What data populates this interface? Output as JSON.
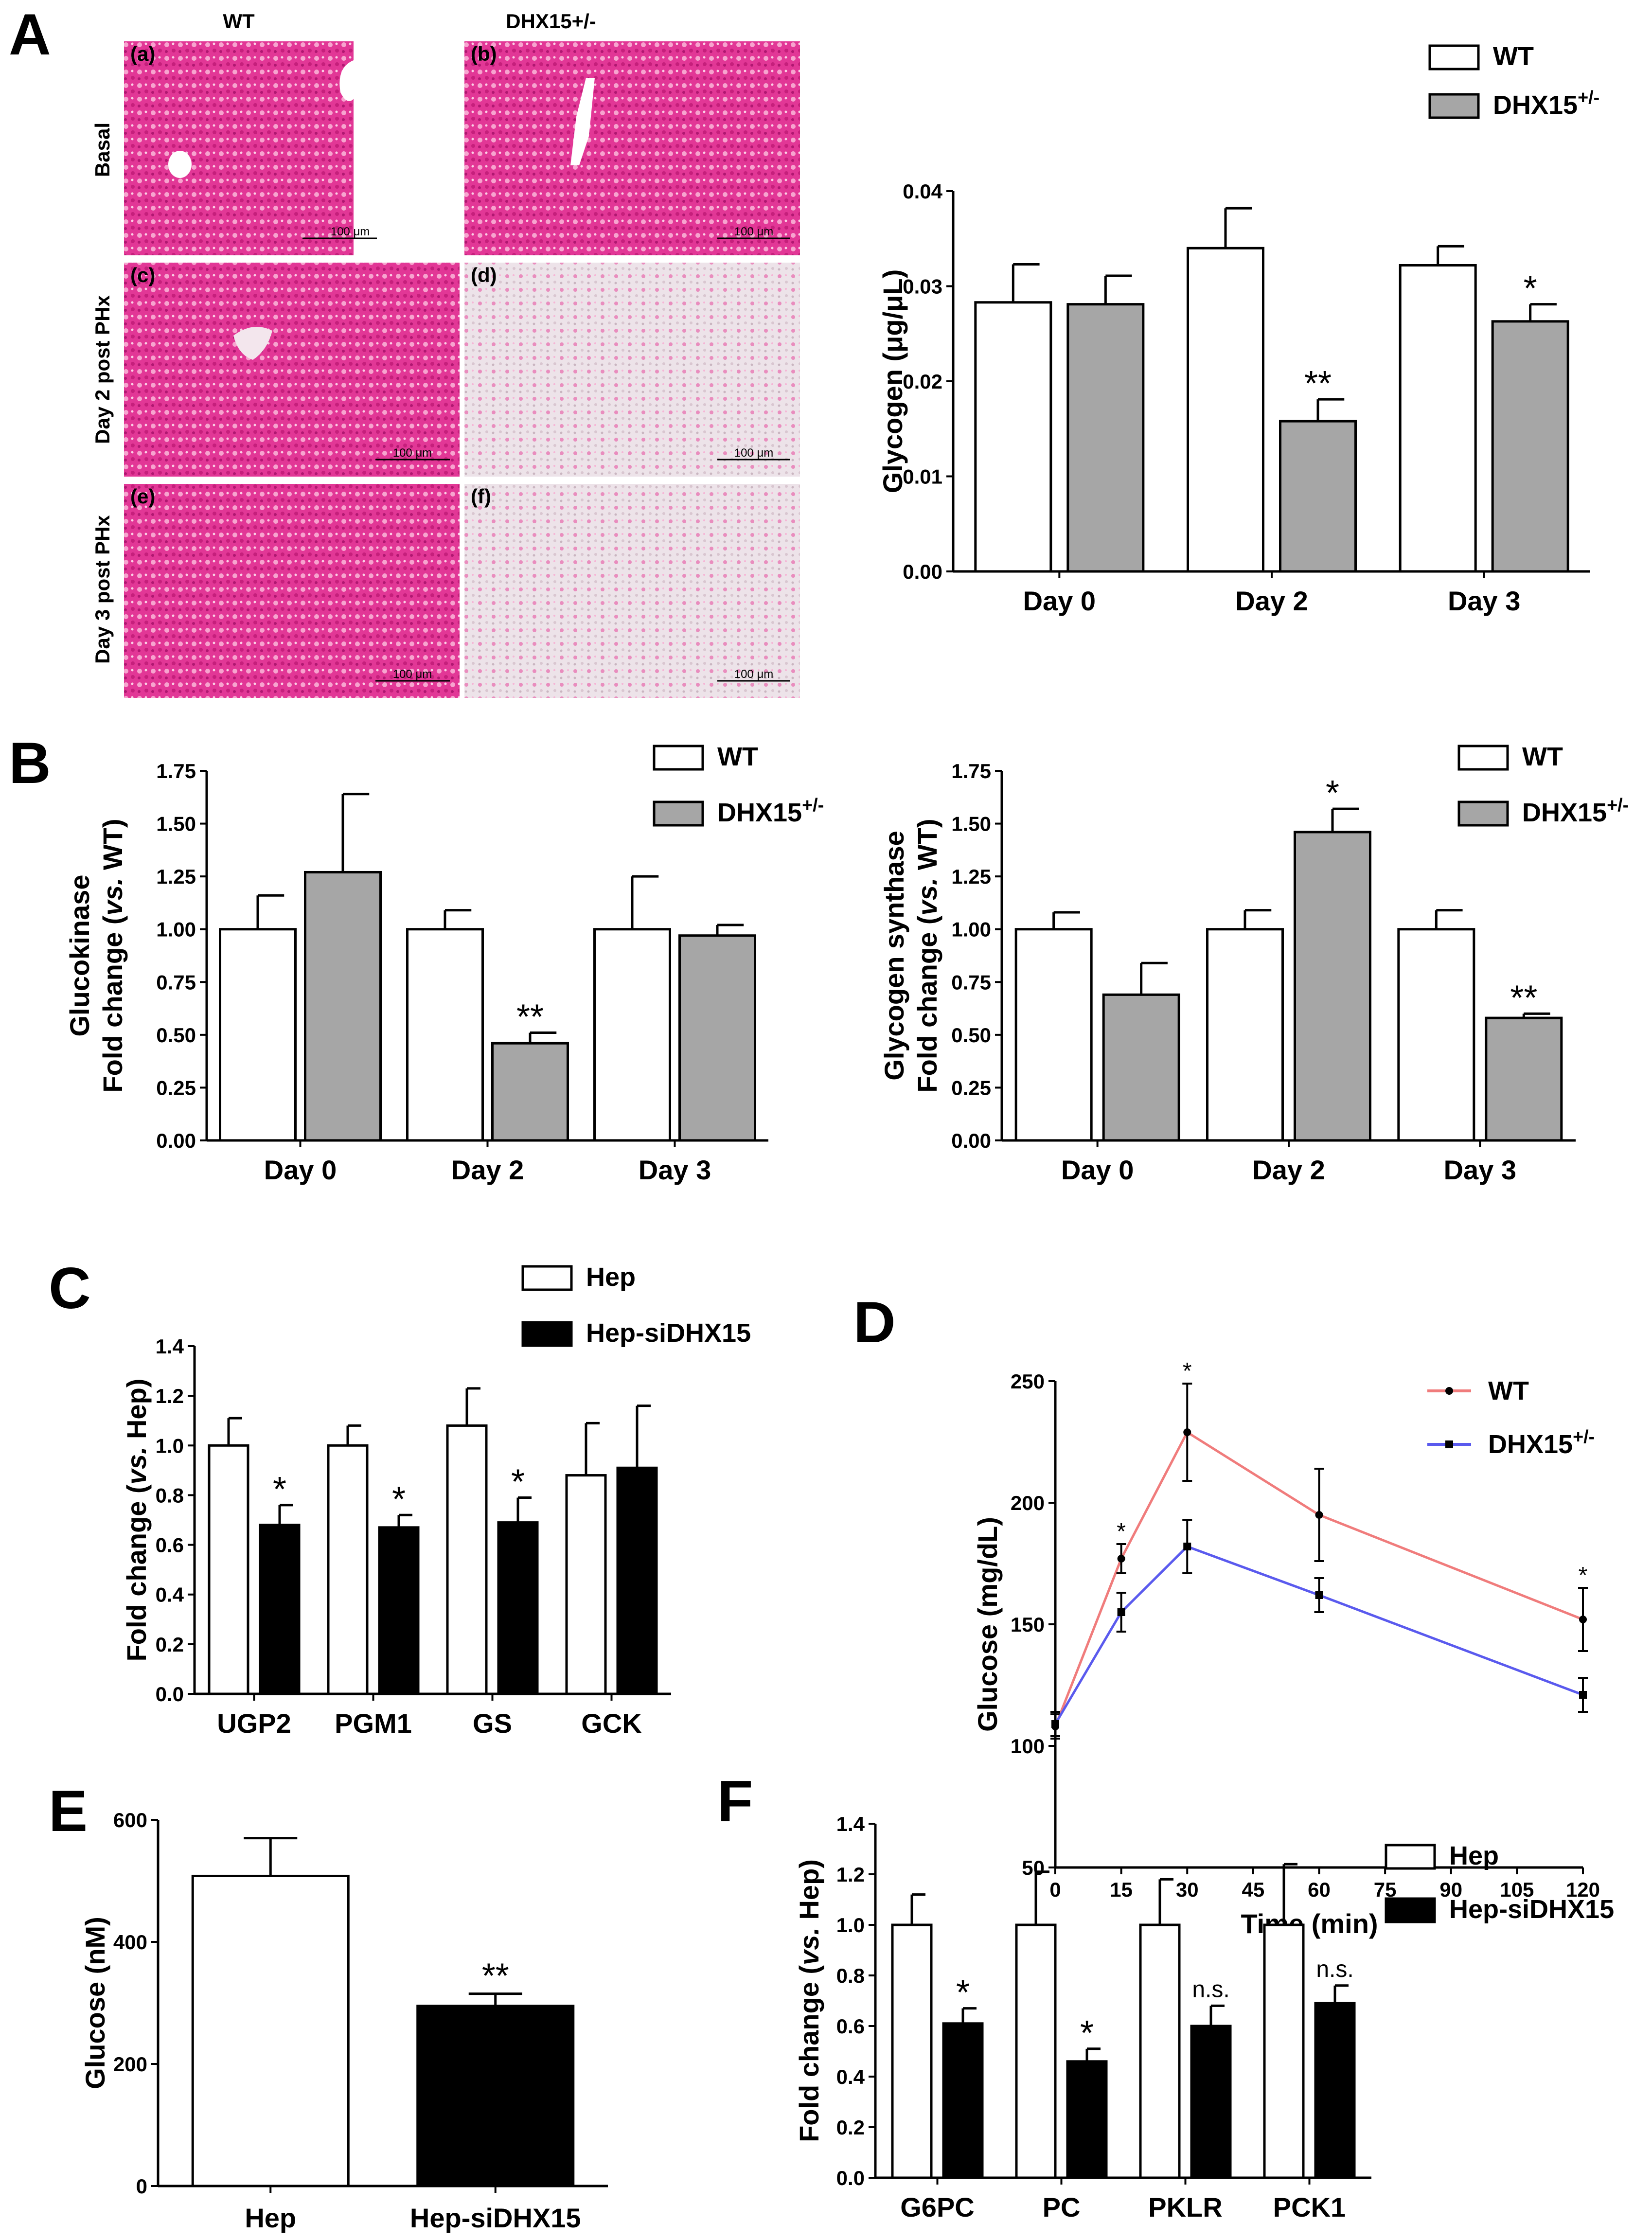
{
  "colors": {
    "wt": "#ffffff",
    "het": "#a6a6a6",
    "sirna": "#000000",
    "wt_line": "#f07c7c",
    "het_line": "#5a5aee",
    "stain": "#e8389a"
  },
  "panels": {
    "A": {
      "label": "A",
      "histology": {
        "col_headers": [
          "WT",
          "DHX15+/-"
        ],
        "row_labels": [
          "Basal",
          "Day 2 post PHx",
          "Day 3 post PHx"
        ],
        "tiles": [
          {
            "id": "(a)",
            "scale_bar": "100 μm",
            "intensity": "high"
          },
          {
            "id": "(b)",
            "scale_bar": "100 μm",
            "intensity": "high"
          },
          {
            "id": "(c)",
            "scale_bar": "100 μm",
            "intensity": "high"
          },
          {
            "id": "(d)",
            "scale_bar": "100 μm",
            "intensity": "low"
          },
          {
            "id": "(e)",
            "scale_bar": "100 μm",
            "intensity": "high"
          },
          {
            "id": "(f)",
            "scale_bar": "100 μm",
            "intensity": "low"
          }
        ]
      }
    },
    "B": {
      "label": "B"
    },
    "C": {
      "label": "C"
    },
    "D": {
      "label": "D"
    },
    "E": {
      "label": "E"
    },
    "F": {
      "label": "F"
    }
  },
  "chart_data": [
    {
      "id": "A_glycogen",
      "type": "bar",
      "panel": "A",
      "categories": [
        "Day 0",
        "Day 2",
        "Day 3"
      ],
      "ylabel": "Glycogen (μg/μL)",
      "ylim": [
        0,
        0.04
      ],
      "yticks": [
        "0.00",
        "0.01",
        "0.02",
        "0.03",
        "0.04"
      ],
      "legend": [
        "WT",
        "DHX15+/-"
      ],
      "series": [
        {
          "name": "WT",
          "color": "#ffffff",
          "values": [
            0.0283,
            0.034,
            0.0322
          ],
          "errors": [
            0.004,
            0.0042,
            0.002
          ],
          "sig": [
            "",
            "",
            ""
          ]
        },
        {
          "name": "DHX15+/-",
          "color": "#a6a6a6",
          "values": [
            0.0281,
            0.0158,
            0.0263
          ],
          "errors": [
            0.003,
            0.0023,
            0.0018
          ],
          "sig": [
            "",
            "**",
            "*"
          ]
        }
      ]
    },
    {
      "id": "B_gck",
      "type": "bar",
      "panel": "B",
      "categories": [
        "Day 0",
        "Day 2",
        "Day 3"
      ],
      "ylabel_lines": [
        "Glucokinase",
        "Fold change (vs. WT)"
      ],
      "ylim": [
        0,
        1.75
      ],
      "yticks": [
        "0.00",
        "0.25",
        "0.50",
        "0.75",
        "1.00",
        "1.25",
        "1.50",
        "1.75"
      ],
      "legend": [
        "WT",
        "DHX15+/-"
      ],
      "series": [
        {
          "name": "WT",
          "color": "#ffffff",
          "values": [
            1.0,
            1.0,
            1.0
          ],
          "errors": [
            0.16,
            0.09,
            0.25
          ],
          "sig": [
            "",
            "",
            ""
          ]
        },
        {
          "name": "DHX15+/-",
          "color": "#a6a6a6",
          "values": [
            1.27,
            0.46,
            0.97
          ],
          "errors": [
            0.37,
            0.05,
            0.05
          ],
          "sig": [
            "",
            "**",
            ""
          ]
        }
      ]
    },
    {
      "id": "B_gs",
      "type": "bar",
      "panel": "B",
      "categories": [
        "Day 0",
        "Day 2",
        "Day 3"
      ],
      "ylabel_lines": [
        "Glycogen synthase",
        "Fold change (vs. WT)"
      ],
      "ylim": [
        0,
        1.75
      ],
      "yticks": [
        "0.00",
        "0.25",
        "0.50",
        "0.75",
        "1.00",
        "1.25",
        "1.50",
        "1.75"
      ],
      "legend": [
        "WT",
        "DHX15+/-"
      ],
      "series": [
        {
          "name": "WT",
          "color": "#ffffff",
          "values": [
            1.0,
            1.0,
            1.0
          ],
          "errors": [
            0.08,
            0.09,
            0.09
          ],
          "sig": [
            "",
            "",
            ""
          ]
        },
        {
          "name": "DHX15+/-",
          "color": "#a6a6a6",
          "values": [
            0.69,
            1.46,
            0.58
          ],
          "errors": [
            0.15,
            0.11,
            0.02
          ],
          "sig": [
            "",
            "*",
            "**"
          ]
        }
      ]
    },
    {
      "id": "C_genes",
      "type": "bar",
      "panel": "C",
      "categories": [
        "UGP2",
        "PGM1",
        "GS",
        "GCK"
      ],
      "ylabel": "Fold change (vs. Hep)",
      "ylim": [
        0,
        1.4
      ],
      "yticks": [
        "0.0",
        "0.2",
        "0.4",
        "0.6",
        "0.8",
        "1.0",
        "1.2",
        "1.4"
      ],
      "legend": [
        "Hep",
        "Hep-siDHX15"
      ],
      "series": [
        {
          "name": "Hep",
          "color": "#ffffff",
          "values": [
            1.0,
            1.0,
            1.08,
            0.88
          ],
          "errors": [
            0.11,
            0.08,
            0.15,
            0.21
          ],
          "sig": [
            "",
            "",
            "",
            ""
          ]
        },
        {
          "name": "Hep-siDHX15",
          "color": "#000000",
          "values": [
            0.68,
            0.67,
            0.69,
            0.91
          ],
          "errors": [
            0.08,
            0.05,
            0.1,
            0.25
          ],
          "sig": [
            "*",
            "*",
            "*",
            ""
          ]
        }
      ]
    },
    {
      "id": "D_gtt",
      "type": "line",
      "panel": "D",
      "x": [
        0,
        15,
        30,
        60,
        120
      ],
      "xticks": [
        "0",
        "15",
        "30",
        "45",
        "60",
        "75",
        "90",
        "105",
        "120"
      ],
      "xtick_values": [
        0,
        15,
        30,
        45,
        60,
        75,
        90,
        105,
        120
      ],
      "xlabel": "Time (min)",
      "ylabel": "Glucose (mg/dL)",
      "xlim": [
        0,
        120
      ],
      "ylim": [
        50,
        250
      ],
      "yticks": [
        "50",
        "100",
        "150",
        "200",
        "250"
      ],
      "legend": [
        "WT",
        "DHX15+/-"
      ],
      "sig": [
        "",
        "*",
        "*",
        "",
        "*"
      ],
      "series": [
        {
          "name": "WT",
          "color": "#f07c7c",
          "values": [
            108,
            177,
            229,
            195,
            152
          ],
          "errors": [
            5,
            6,
            20,
            19,
            13
          ]
        },
        {
          "name": "DHX15+/-",
          "color": "#5a5aee",
          "values": [
            109,
            155,
            182,
            162,
            121
          ],
          "errors": [
            5,
            8,
            11,
            7,
            7
          ]
        }
      ]
    },
    {
      "id": "E_glucose",
      "type": "bar",
      "panel": "E",
      "categories": [
        "Hep",
        "Hep-siDHX15"
      ],
      "ylabel": "Glucose (nM)",
      "ylim": [
        0,
        600
      ],
      "yticks": [
        "0",
        "200",
        "400",
        "600"
      ],
      "values": [
        508,
        295
      ],
      "errors": [
        62,
        20
      ],
      "colors": [
        "#ffffff",
        "#000000"
      ],
      "sig": [
        "",
        "**"
      ]
    },
    {
      "id": "F_genes",
      "type": "bar",
      "panel": "F",
      "categories": [
        "G6PC",
        "PC",
        "PKLR",
        "PCK1"
      ],
      "ylabel": "Fold change (vs. Hep)",
      "ylim": [
        0,
        1.4
      ],
      "yticks": [
        "0.0",
        "0.2",
        "0.4",
        "0.6",
        "0.8",
        "1.0",
        "1.2",
        "1.4"
      ],
      "legend": [
        "Hep",
        "Hep-siDHX15"
      ],
      "series": [
        {
          "name": "Hep",
          "color": "#ffffff",
          "values": [
            1.0,
            1.0,
            1.0,
            1.0
          ],
          "errors": [
            0.12,
            0.21,
            0.18,
            0.24
          ],
          "sig": [
            "",
            "",
            "",
            ""
          ]
        },
        {
          "name": "Hep-siDHX15",
          "color": "#000000",
          "values": [
            0.61,
            0.46,
            0.6,
            0.69
          ],
          "errors": [
            0.06,
            0.05,
            0.08,
            0.07
          ],
          "sig": [
            "*",
            "*",
            "n.s.",
            "n.s."
          ]
        }
      ]
    }
  ]
}
